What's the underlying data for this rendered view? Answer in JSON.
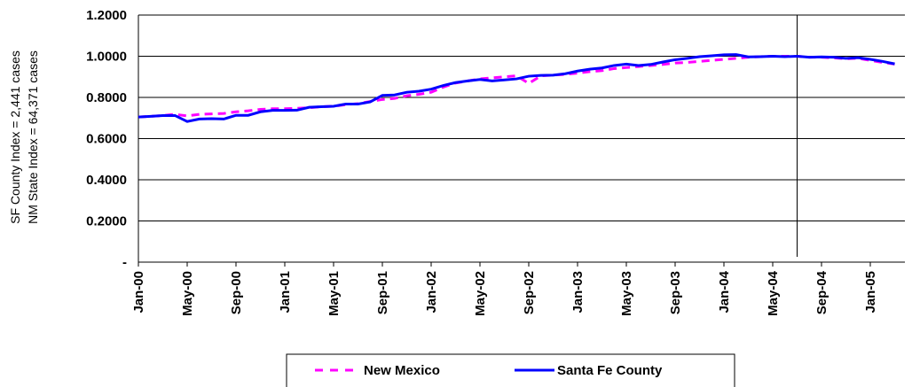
{
  "chart_data": {
    "type": "line",
    "y_axis_label": [
      "SF County Index = 2,441 cases",
      "NM State Index = 64,371 cases"
    ],
    "categories": [
      "Jan-00",
      null,
      null,
      null,
      "May-00",
      null,
      null,
      null,
      "Sep-00",
      null,
      null,
      null,
      "Jan-01",
      null,
      null,
      null,
      "May-01",
      null,
      null,
      null,
      "Sep-01",
      null,
      null,
      null,
      "Jan-02",
      null,
      null,
      null,
      "May-02",
      null,
      null,
      null,
      "Sep-02",
      null,
      null,
      null,
      "Jan-03",
      null,
      null,
      null,
      "May-03",
      null,
      null,
      null,
      "Sep-03",
      null,
      null,
      null,
      "Jan-04",
      null,
      null,
      null,
      "May-04",
      null,
      null,
      null,
      "Sep-04",
      null,
      null,
      null,
      "Jan-05",
      null,
      null
    ],
    "series": [
      {
        "name": "New Mexico",
        "color": "#ff00ff",
        "dashed": true,
        "values": [
          0.705,
          0.708,
          0.712,
          0.718,
          0.71,
          0.718,
          0.72,
          0.722,
          0.73,
          0.735,
          0.742,
          0.745,
          0.745,
          0.747,
          0.75,
          0.755,
          0.757,
          0.765,
          0.77,
          0.78,
          0.79,
          0.795,
          0.808,
          0.815,
          0.825,
          0.85,
          0.87,
          0.88,
          0.89,
          0.895,
          0.9,
          0.905,
          0.868,
          0.905,
          0.908,
          0.912,
          0.918,
          0.925,
          0.93,
          0.94,
          0.945,
          0.95,
          0.955,
          0.96,
          0.967,
          0.97,
          0.975,
          0.98,
          0.985,
          0.99,
          0.995,
          0.998,
          1.0,
          1.0,
          1.0,
          0.995,
          0.995,
          0.992,
          0.988,
          0.99,
          0.98,
          0.97,
          0.962
        ]
      },
      {
        "name": "Santa Fe County",
        "color": "#0000ff",
        "dashed": false,
        "values": [
          0.705,
          0.708,
          0.712,
          0.712,
          0.683,
          0.695,
          0.697,
          0.695,
          0.713,
          0.713,
          0.73,
          0.737,
          0.737,
          0.738,
          0.752,
          0.755,
          0.757,
          0.768,
          0.768,
          0.778,
          0.81,
          0.812,
          0.825,
          0.83,
          0.84,
          0.858,
          0.872,
          0.88,
          0.887,
          0.88,
          0.885,
          0.89,
          0.903,
          0.907,
          0.908,
          0.915,
          0.928,
          0.937,
          0.943,
          0.955,
          0.962,
          0.955,
          0.96,
          0.972,
          0.983,
          0.99,
          0.998,
          1.002,
          1.007,
          1.008,
          0.997,
          0.998,
          1.0,
          0.998,
          1.0,
          0.995,
          0.997,
          0.995,
          0.99,
          0.993,
          0.985,
          0.975,
          0.963
        ]
      }
    ],
    "ylim": [
      0,
      1.2
    ],
    "yticks": [
      {
        "value": 0,
        "label": "-"
      },
      {
        "value": 0.2,
        "label": "0.2000"
      },
      {
        "value": 0.4,
        "label": "0.4000"
      },
      {
        "value": 0.6,
        "label": "0.6000"
      },
      {
        "value": 0.8,
        "label": "0.8000"
      },
      {
        "value": 1.0,
        "label": "1.0000"
      },
      {
        "value": 1.2,
        "label": "1.2000"
      }
    ],
    "grid": true,
    "reference_line_at": 54,
    "legend": "bottom"
  }
}
